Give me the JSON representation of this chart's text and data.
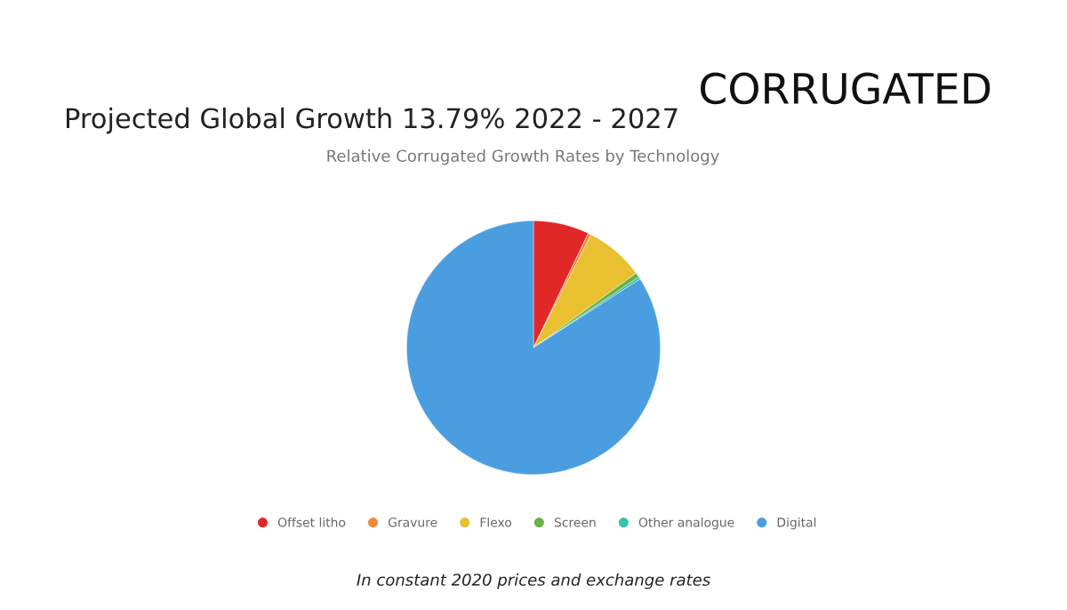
{
  "chart_data": {
    "type": "pie",
    "title": "Relative Corrugated Growth Rates by Technology",
    "subtitle": "Projected Global Growth 13.79% 2022 - 2027",
    "annotations": [
      "CORRUGATED",
      "In constant 2020 prices and exchange rates"
    ],
    "categories": [
      "Offset litho",
      "Gravure",
      "Flexo",
      "Screen",
      "Other analogue",
      "Digital"
    ],
    "values": [
      7.1,
      0.4,
      7.5,
      0.6,
      0.3,
      84.1
    ],
    "colors": [
      "#e02828",
      "#f08a3c",
      "#e8c030",
      "#6ab04c",
      "#3cc0b0",
      "#4a9ee0"
    ],
    "legend": "bottom"
  }
}
